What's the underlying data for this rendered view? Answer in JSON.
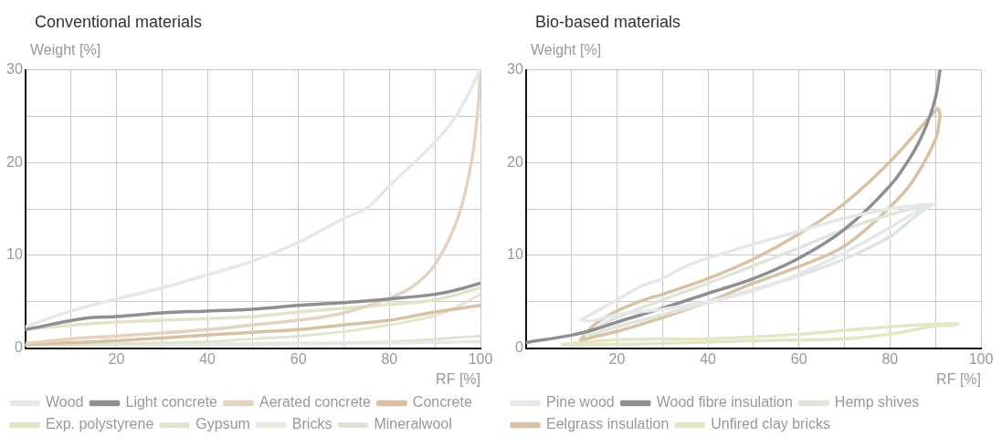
{
  "chart_data": [
    {
      "type": "line",
      "title": "Conventional materials",
      "xlabel": "RF [%]",
      "ylabel": "Weight [%]",
      "xlim": [
        0,
        100
      ],
      "ylim": [
        0,
        30
      ],
      "xticks": [
        {
          "value": 0,
          "label": null
        },
        {
          "value": 10,
          "label": null
        },
        20,
        {
          "value": 30,
          "label": null
        },
        40,
        {
          "value": 50,
          "label": null
        },
        60,
        {
          "value": 70,
          "label": null
        },
        80,
        {
          "value": 90,
          "label": null
        },
        100
      ],
      "yticks": [
        0,
        {
          "value": 5,
          "label": null
        },
        10,
        {
          "value": 15,
          "label": null
        },
        20,
        {
          "value": 25,
          "label": null
        },
        30
      ],
      "grid": true,
      "legend": "bottom",
      "marker": "none",
      "line_style": "solid",
      "series": [
        {
          "name": "Wood",
          "color": "#e3e8e8",
          "x": [
            0,
            10,
            20,
            30,
            40,
            50,
            60,
            70,
            75,
            80,
            90,
            95,
            100
          ],
          "values": [
            2.3,
            4.0,
            5.3,
            6.5,
            7.9,
            9.4,
            11.4,
            14.0,
            15.1,
            17.5,
            22.2,
            25.3,
            30
          ]
        },
        {
          "name": "Light concrete",
          "color": "#8e8f93",
          "x": [
            0,
            13,
            20,
            30,
            40,
            50,
            60,
            70,
            80,
            90,
            95,
            100
          ],
          "values": [
            2.0,
            3.2,
            3.4,
            3.8,
            4.0,
            4.2,
            4.6,
            4.9,
            5.3,
            5.8,
            6.3,
            7.0
          ]
        },
        {
          "name": "Aerated concrete",
          "color": "#e4d3bf",
          "x": [
            0,
            10,
            20,
            40,
            50,
            60,
            70,
            80,
            85,
            90,
            95,
            98,
            99.5,
            100
          ],
          "values": [
            0.5,
            1.0,
            1.3,
            2.0,
            2.5,
            3.0,
            3.8,
            5.4,
            6.6,
            9.0,
            14,
            20,
            26,
            30
          ]
        },
        {
          "name": "Concrete",
          "color": "#d9c0a0",
          "x": [
            0,
            20,
            40,
            50,
            60,
            70,
            80,
            90,
            100
          ],
          "values": [
            0.4,
            0.8,
            1.4,
            1.7,
            2.0,
            2.5,
            3.0,
            3.9,
            4.6
          ]
        },
        {
          "name": "Exp. polystyrene",
          "color": "#e2e4c6",
          "x": [
            0,
            13,
            30,
            50,
            60,
            70,
            80,
            90,
            100
          ],
          "values": [
            2.0,
            2.6,
            3.0,
            3.4,
            3.9,
            4.3,
            4.7,
            5.2,
            6.5
          ]
        },
        {
          "name": "Gypsum",
          "color": "#dfe5c9",
          "line_style": "dotted",
          "x": [
            0,
            40,
            50,
            60,
            70,
            80,
            90,
            95,
            100
          ],
          "values": [
            0.3,
            0.7,
            1.0,
            1.3,
            1.8,
            2.5,
            3.5,
            4.5,
            5.8
          ]
        },
        {
          "name": "Bricks",
          "color": "#e6eae0",
          "x": [
            0,
            50,
            100
          ],
          "values": [
            0.3,
            0.4,
            0.7
          ]
        },
        {
          "name": "Mineralwool",
          "color": "#dde3cf",
          "line_style": "dotted",
          "x": [
            0,
            50,
            80,
            100
          ],
          "values": [
            0.3,
            0.5,
            0.7,
            1.3
          ]
        }
      ]
    },
    {
      "type": "line",
      "title": "Bio-based materials",
      "xlabel": "RF [%]",
      "ylabel": "Weight [%]",
      "xlim": [
        0,
        100
      ],
      "ylim": [
        0,
        30
      ],
      "xticks": [
        {
          "value": 0,
          "label": null
        },
        {
          "value": 10,
          "label": null
        },
        20,
        {
          "value": 30,
          "label": null
        },
        40,
        {
          "value": 50,
          "label": null
        },
        60,
        {
          "value": 70,
          "label": null
        },
        80,
        {
          "value": 90,
          "label": null
        },
        100
      ],
      "yticks": [
        0,
        {
          "value": 5,
          "label": null
        },
        10,
        {
          "value": 15,
          "label": null
        },
        20,
        {
          "value": 25,
          "label": null
        },
        30
      ],
      "grid": true,
      "legend": "bottom",
      "marker": "none",
      "line_style": "solid",
      "series": [
        {
          "name": "Pine wood",
          "color": "#e3e8ea",
          "x": [
            12,
            20,
            25,
            30,
            35,
            40,
            50,
            60,
            70,
            80,
            88,
            90
          ],
          "values": [
            3.0,
            5.2,
            6.6,
            7.5,
            8.8,
            9.7,
            11.2,
            12.6,
            14.0,
            15.0,
            15.5,
            15.5
          ]
        },
        {
          "color": "#e3e8ea",
          "x": [
            13,
            15,
            20,
            30,
            40,
            50,
            60,
            70,
            80,
            85,
            89
          ],
          "values": [
            2.9,
            3.0,
            3.6,
            4.2,
            5.0,
            6.2,
            8.0,
            10.3,
            13.0,
            14.5,
            15.3
          ]
        },
        {
          "name": "Wood fibre insulation",
          "color": "#8e8f93",
          "x": [
            0,
            10,
            15,
            20,
            30,
            40,
            50,
            60,
            70,
            80,
            85,
            88,
            90,
            91
          ],
          "values": [
            0.6,
            1.4,
            2.0,
            2.8,
            4.3,
            5.9,
            7.5,
            9.7,
            12.8,
            17.5,
            21,
            24,
            27,
            30
          ]
        },
        {
          "name": "Hemp shives",
          "color": "#dfe5da",
          "x": [
            13,
            20,
            30,
            40,
            50,
            60,
            70,
            80,
            89
          ],
          "values": [
            1.5,
            3.3,
            5.2,
            7.0,
            8.9,
            10.8,
            12.8,
            14.4,
            15.5
          ]
        },
        {
          "color": "#dfe5da",
          "x": [
            14,
            20,
            30,
            40,
            50,
            60,
            70,
            80,
            85,
            88
          ],
          "values": [
            1.4,
            2.3,
            3.6,
            4.9,
            6.3,
            7.8,
            9.6,
            12.0,
            14,
            15.1
          ]
        },
        {
          "name": "Eelgrass insulation",
          "color": "#d9c2a2",
          "x": [
            12,
            15,
            20,
            26,
            30,
            40,
            50,
            60,
            70,
            80,
            88,
            90.5,
            91
          ],
          "values": [
            0.9,
            2.5,
            4.0,
            5.2,
            5.8,
            7.5,
            9.6,
            12.3,
            15.6,
            20.1,
            24.5,
            25.8,
            25
          ]
        },
        {
          "color": "#d9c2a2",
          "x": [
            12,
            20,
            30,
            40,
            50,
            60,
            70,
            80,
            85,
            90,
            91
          ],
          "values": [
            0.9,
            1.8,
            3.3,
            5.0,
            7.0,
            8.8,
            11.0,
            15.2,
            18,
            22.5,
            25
          ]
        },
        {
          "name": "Unfired clay bricks",
          "color": "#e4e6c4",
          "x": [
            8,
            20,
            40,
            60,
            70,
            80,
            90,
            95
          ],
          "values": [
            0.4,
            0.9,
            1.0,
            1.5,
            1.9,
            2.3,
            2.6,
            2.6
          ]
        },
        {
          "color": "#e4e6c4",
          "x": [
            9,
            30,
            50,
            70,
            80,
            90,
            94
          ],
          "values": [
            0.3,
            0.5,
            0.8,
            1.0,
            1.5,
            2.4,
            2.5
          ]
        }
      ]
    }
  ]
}
